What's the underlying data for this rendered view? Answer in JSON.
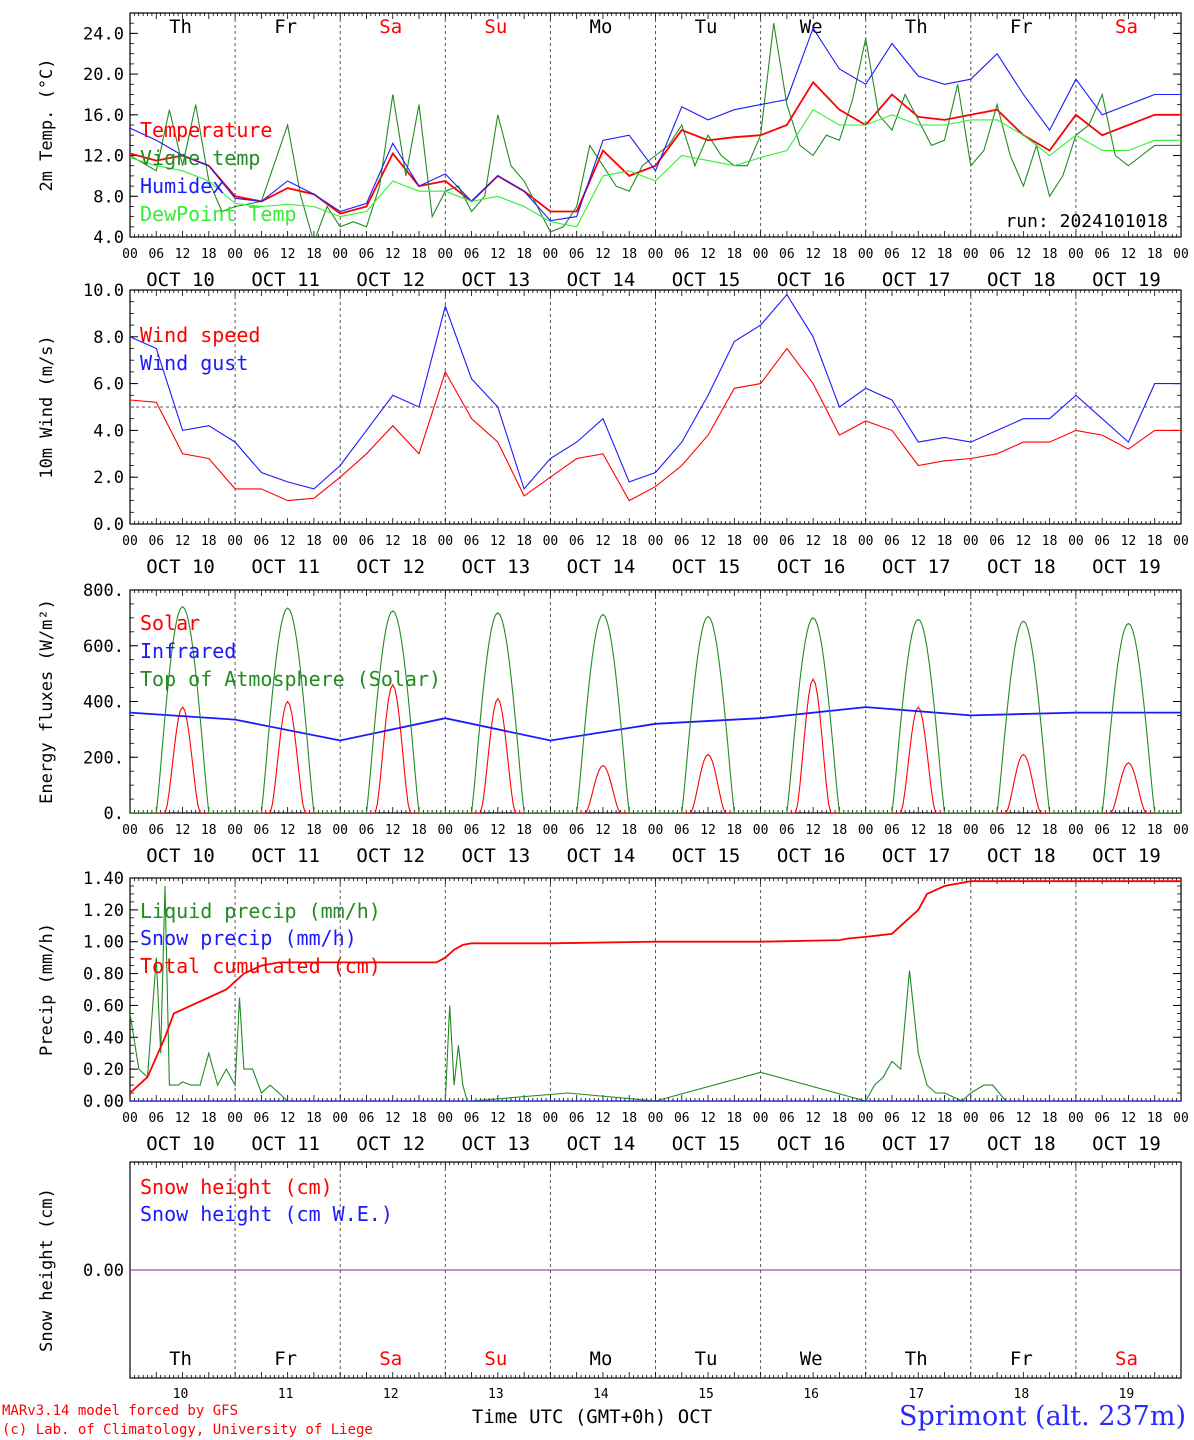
{
  "days": [
    "Th",
    "Fr",
    "Sa",
    "Su",
    "Mo",
    "Tu",
    "We",
    "Th",
    "Fr",
    "Sa"
  ],
  "day_colors": [
    "#000000",
    "#000000",
    "#ff0000",
    "#ff0000",
    "#000000",
    "#000000",
    "#000000",
    "#000000",
    "#000000",
    "#ff0000"
  ],
  "dates": [
    "OCT 10",
    "OCT 11",
    "OCT 12",
    "OCT 13",
    "OCT 14",
    "OCT 15",
    "OCT 16",
    "OCT 17",
    "OCT 18",
    "OCT 19"
  ],
  "bottom_dates": [
    "10",
    "11",
    "12",
    "13",
    "14",
    "15",
    "16",
    "17",
    "18",
    "19"
  ],
  "hour_ticks": [
    "00",
    "06",
    "12",
    "18"
  ],
  "last_tick": "00",
  "run_label": "run: 2024101018",
  "xaxis_title": "Time UTC (GMT+0h) OCT",
  "credit_line1": "MARv3.14 model forced by GFS",
  "credit_line2": "(c) Lab. of Climatology, University of Liege",
  "site": "Sprimont (alt. 237m)",
  "colors": {
    "red": "#ff0000",
    "blue": "#1a1aff",
    "green": "#228b22",
    "lightgreen": "#33ee33",
    "purple": "#7a2d8f"
  },
  "chart_data": [
    {
      "type": "line",
      "ylabel": "2m Temp. (°C)",
      "ylim": [
        4,
        26
      ],
      "yticks": [
        "4.0",
        "8.0",
        "12.0",
        "16.0",
        "20.0",
        "24.0"
      ],
      "x_unit": "hours since OCT 10 00 UTC",
      "series": [
        {
          "name": "Temperature",
          "color": "red",
          "x": [
            0,
            6,
            12,
            18,
            24,
            30,
            36,
            42,
            48,
            54,
            60,
            66,
            72,
            78,
            84,
            90,
            96,
            102,
            108,
            114,
            120,
            126,
            132,
            138,
            144,
            150,
            156,
            162,
            168,
            174,
            180,
            186,
            192,
            198,
            204,
            210,
            216,
            222,
            228,
            234
          ],
          "y": [
            12.2,
            11.5,
            12,
            11,
            8,
            7.5,
            8.8,
            8.2,
            6.3,
            7,
            12.2,
            9,
            9.5,
            7.5,
            10,
            8.5,
            6.5,
            6.5,
            12.5,
            10,
            11,
            14.5,
            13.5,
            13.8,
            14,
            15,
            19.2,
            16.5,
            15,
            18,
            15.8,
            15.5,
            16,
            16.5,
            14,
            12.5,
            16,
            14,
            15,
            16
          ]
        },
        {
          "name": "Vigne temp",
          "color": "green",
          "x": [
            0,
            6,
            9,
            12,
            15,
            18,
            21,
            24,
            30,
            36,
            39,
            42,
            45,
            48,
            51,
            54,
            57,
            60,
            63,
            66,
            69,
            72,
            75,
            78,
            81,
            84,
            87,
            90,
            93,
            96,
            99,
            102,
            105,
            108,
            111,
            114,
            117,
            120,
            123,
            126,
            129,
            132,
            135,
            138,
            141,
            144,
            147,
            150,
            153,
            156,
            159,
            162,
            165,
            168,
            171,
            174,
            177,
            180,
            183,
            186,
            189,
            192,
            195,
            198,
            201,
            204,
            207,
            210,
            213,
            216,
            219,
            222,
            225,
            228,
            231,
            234
          ],
          "y": [
            12,
            10.5,
            16.5,
            11,
            17,
            9.5,
            6.5,
            7,
            7.5,
            15,
            8,
            3.5,
            7,
            5,
            5.5,
            5,
            9,
            18,
            10,
            17,
            6,
            8.5,
            9,
            6.5,
            8,
            16,
            11,
            9.5,
            7,
            4.5,
            5,
            7,
            13,
            11,
            9,
            8.5,
            11,
            12,
            13,
            15,
            11,
            14,
            12,
            11,
            11,
            14,
            25,
            17,
            13,
            12,
            14,
            13.5,
            17.5,
            23.5,
            16,
            14.5,
            18,
            15.5,
            13,
            13.5,
            19,
            11,
            12.5,
            17,
            12,
            9,
            13,
            8,
            10,
            14,
            15,
            18,
            12,
            11,
            12,
            13
          ]
        },
        {
          "name": "Humidex",
          "color": "blue",
          "x": [
            0,
            6,
            12,
            18,
            24,
            30,
            36,
            42,
            48,
            54,
            60,
            66,
            72,
            78,
            84,
            90,
            96,
            102,
            108,
            114,
            120,
            126,
            132,
            138,
            144,
            150,
            156,
            162,
            168,
            174,
            180,
            186,
            192,
            198,
            204,
            210,
            216,
            222,
            228,
            234
          ],
          "y": [
            14.7,
            13.5,
            12,
            11,
            7.8,
            7.5,
            9.5,
            8.2,
            6.5,
            7.3,
            13.2,
            9,
            10.2,
            7.5,
            10,
            8.5,
            5.6,
            6,
            13.5,
            14,
            10.5,
            16.8,
            15.5,
            16.5,
            17,
            17.5,
            24.5,
            20.5,
            19,
            23,
            19.8,
            19,
            19.5,
            22,
            18,
            14.5,
            19.5,
            16,
            17,
            18
          ]
        },
        {
          "name": "DewPoint Temp",
          "color": "lightgreen",
          "x": [
            0,
            6,
            12,
            18,
            24,
            30,
            36,
            42,
            48,
            54,
            60,
            66,
            72,
            78,
            84,
            90,
            96,
            102,
            108,
            114,
            120,
            126,
            132,
            138,
            144,
            150,
            156,
            162,
            168,
            174,
            180,
            186,
            192,
            198,
            204,
            210,
            216,
            222,
            228,
            234
          ],
          "y": [
            11.8,
            11,
            10.5,
            9.5,
            7.3,
            7,
            7.2,
            7,
            6,
            6.5,
            9.5,
            8.5,
            8.5,
            7.5,
            8,
            7,
            5.5,
            5,
            10,
            10.5,
            9.5,
            12,
            11.5,
            11,
            11.8,
            12.5,
            16.5,
            15,
            15,
            16,
            15,
            15,
            15.5,
            15.5,
            14,
            12,
            14,
            12.5,
            12.5,
            13.5
          ]
        }
      ]
    },
    {
      "type": "line",
      "ylabel": "10m Wind (m/s)",
      "ylim": [
        0,
        10
      ],
      "yticks": [
        "0.0",
        "2.0",
        "4.0",
        "6.0",
        "8.0",
        "10.0"
      ],
      "reference_line": 5,
      "series": [
        {
          "name": "Wind speed",
          "color": "red",
          "x": [
            0,
            6,
            12,
            18,
            24,
            30,
            36,
            42,
            48,
            54,
            60,
            66,
            72,
            78,
            84,
            90,
            96,
            102,
            108,
            114,
            120,
            126,
            132,
            138,
            144,
            150,
            156,
            162,
            168,
            174,
            180,
            186,
            192,
            198,
            204,
            210,
            216,
            222,
            228,
            234
          ],
          "y": [
            5.3,
            5.2,
            3,
            2.8,
            1.5,
            1.5,
            1,
            1.1,
            2,
            3,
            4.2,
            3,
            6.5,
            4.5,
            3.5,
            1.2,
            2,
            2.8,
            3,
            1,
            1.6,
            2.5,
            3.8,
            5.8,
            6,
            7.5,
            6,
            3.8,
            4.4,
            4,
            2.5,
            2.7,
            2.8,
            3,
            3.5,
            3.5,
            4,
            3.8,
            3.2,
            4
          ]
        },
        {
          "name": "Wind gust",
          "color": "blue",
          "x": [
            0,
            6,
            12,
            18,
            24,
            30,
            36,
            42,
            48,
            54,
            60,
            66,
            72,
            78,
            84,
            90,
            96,
            102,
            108,
            114,
            120,
            126,
            132,
            138,
            144,
            150,
            156,
            162,
            168,
            174,
            180,
            186,
            192,
            198,
            204,
            210,
            216,
            222,
            228,
            234
          ],
          "y": [
            8,
            7.5,
            4,
            4.2,
            3.5,
            2.2,
            1.8,
            1.5,
            2.5,
            4,
            5.5,
            5,
            9.3,
            6.2,
            5,
            1.5,
            2.8,
            3.5,
            4.5,
            1.8,
            2.2,
            3.5,
            5.5,
            7.8,
            8.5,
            9.8,
            8,
            5,
            5.8,
            5.3,
            3.5,
            3.7,
            3.5,
            4,
            4.5,
            4.5,
            5.5,
            4.5,
            3.5,
            6
          ]
        }
      ]
    },
    {
      "type": "line",
      "ylabel": "Energy fluxes (W/m²)",
      "ylim": [
        0,
        800
      ],
      "yticks": [
        "0.",
        "200.",
        "400.",
        "600.",
        "800."
      ],
      "series": [
        {
          "name": "Solar",
          "color": "red",
          "peaks": [
            380,
            400,
            460,
            410,
            170,
            210,
            480,
            380,
            210,
            180
          ]
        },
        {
          "name": "Infrared",
          "color": "blue",
          "x": [
            0,
            24,
            48,
            72,
            96,
            120,
            144,
            168,
            192,
            216,
            234
          ],
          "y": [
            360,
            335,
            260,
            340,
            260,
            320,
            340,
            380,
            350,
            360,
            360
          ]
        },
        {
          "name": "Top of Atmosphere (Solar)",
          "color": "green",
          "peaks": [
            740,
            735,
            725,
            718,
            712,
            705,
            700,
            695,
            688,
            680
          ]
        }
      ]
    },
    {
      "type": "line",
      "ylabel": "Precip (mm/h)",
      "ylim": [
        0,
        1.4
      ],
      "yticks": [
        "0.00",
        "0.20",
        "0.40",
        "0.60",
        "0.80",
        "1.00",
        "1.20",
        "1.40"
      ],
      "series": [
        {
          "name": "Liquid precip (mm/h)",
          "color": "green",
          "x": [
            0,
            2,
            4,
            6,
            7,
            8,
            9,
            10,
            11,
            12,
            14,
            16,
            18,
            20,
            22,
            24,
            25,
            26,
            28,
            30,
            32,
            34,
            36,
            48,
            60,
            72,
            73,
            74,
            75,
            76,
            77,
            78,
            100,
            120,
            144,
            168,
            170,
            172,
            174,
            176,
            178,
            180,
            182,
            184,
            186,
            190,
            192,
            195,
            197,
            200,
            216,
            234
          ],
          "y": [
            0.55,
            0.2,
            0.15,
            0.9,
            0.3,
            1.35,
            0.1,
            0.1,
            0.1,
            0.12,
            0.1,
            0.1,
            0.3,
            0.1,
            0.2,
            0.1,
            0.65,
            0.2,
            0.2,
            0.05,
            0.1,
            0.05,
            0,
            0,
            0,
            0,
            0.6,
            0.1,
            0.35,
            0.1,
            0,
            0,
            0.05,
            0,
            0.18,
            0,
            0.1,
            0.15,
            0.25,
            0.2,
            0.82,
            0.3,
            0.1,
            0.05,
            0.05,
            0,
            0.05,
            0.1,
            0.1,
            0,
            0,
            0
          ]
        },
        {
          "name": "Snow precip (mm/h)",
          "color": "blue",
          "x": [
            0,
            234
          ],
          "y": [
            0,
            0
          ]
        },
        {
          "name": "Total cumulated (cm)",
          "color": "red",
          "x": [
            0,
            4,
            8,
            10,
            14,
            18,
            22,
            24,
            26,
            30,
            34,
            36,
            48,
            60,
            70,
            72,
            74,
            76,
            78,
            96,
            120,
            144,
            162,
            164,
            168,
            174,
            176,
            180,
            182,
            186,
            192,
            234
          ],
          "y": [
            0.05,
            0.15,
            0.4,
            0.55,
            0.6,
            0.65,
            0.7,
            0.75,
            0.8,
            0.85,
            0.87,
            0.87,
            0.87,
            0.87,
            0.87,
            0.9,
            0.95,
            0.98,
            0.99,
            0.99,
            1.0,
            1.0,
            1.01,
            1.02,
            1.03,
            1.05,
            1.1,
            1.2,
            1.3,
            1.35,
            1.38,
            1.38
          ]
        }
      ]
    },
    {
      "type": "line",
      "ylabel": "Snow height (cm)",
      "ylim": [
        -1,
        1
      ],
      "yticks": [
        "0.00"
      ],
      "series": [
        {
          "name": "Snow height (cm)",
          "color": "red",
          "x": [
            0,
            234
          ],
          "y": [
            0,
            0
          ]
        },
        {
          "name": "Snow height (cm W.E.)",
          "color": "blue",
          "x": [
            0,
            234
          ],
          "y": [
            0,
            0
          ]
        }
      ]
    }
  ]
}
